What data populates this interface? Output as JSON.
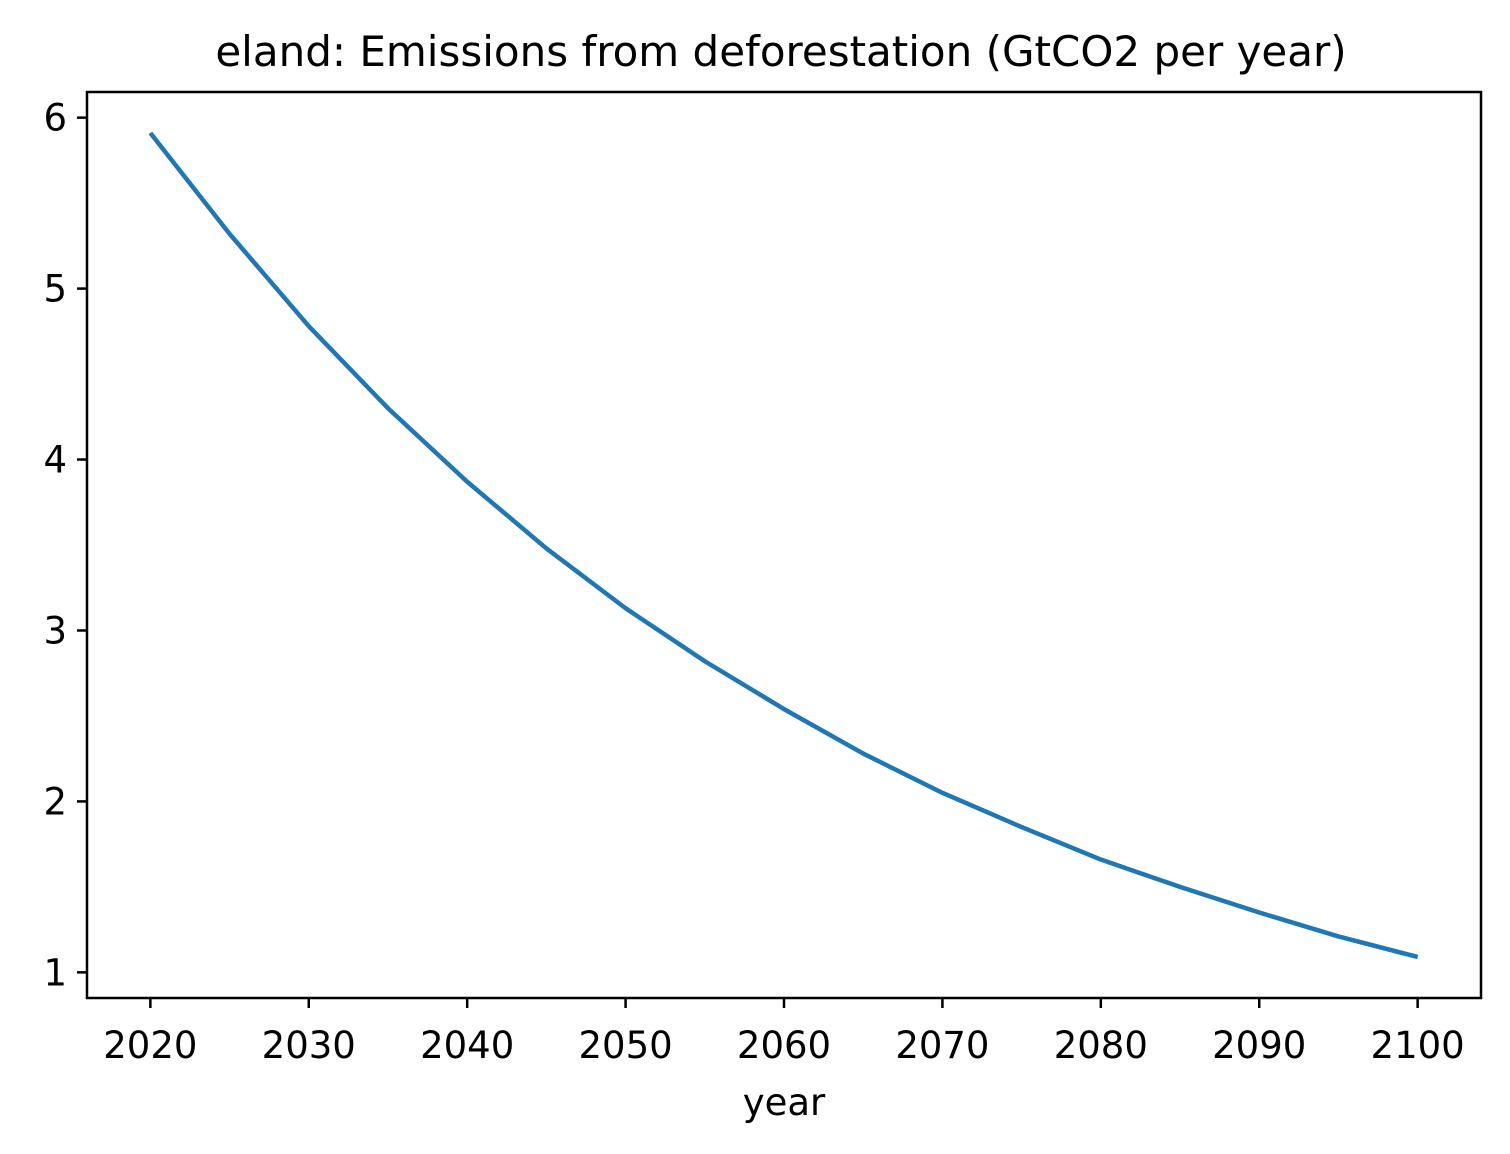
{
  "chart_data": {
    "type": "line",
    "title": "eland: Emissions from deforestation (GtCO2 per year)",
    "xlabel": "year",
    "ylabel": "",
    "xlim": [
      2016,
      2104
    ],
    "ylim": [
      0.85,
      6.15
    ],
    "xticks": [
      2020,
      2030,
      2040,
      2050,
      2060,
      2070,
      2080,
      2090,
      2100
    ],
    "yticks": [
      1,
      2,
      3,
      4,
      5,
      6
    ],
    "grid": false,
    "legend": "none",
    "series": [
      {
        "color": "#1f77b4",
        "x": [
          2020,
          2025,
          2030,
          2035,
          2040,
          2045,
          2050,
          2055,
          2060,
          2065,
          2070,
          2075,
          2080,
          2085,
          2090,
          2095,
          2100
        ],
        "y": [
          5.91,
          5.32,
          4.78,
          4.3,
          3.87,
          3.48,
          3.13,
          2.82,
          2.54,
          2.28,
          2.05,
          1.85,
          1.66,
          1.5,
          1.35,
          1.21,
          1.09
        ]
      }
    ]
  }
}
